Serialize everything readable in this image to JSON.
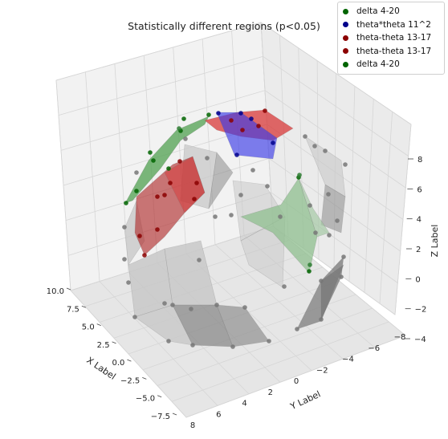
{
  "chart_data": {
    "type": "scatter-3d",
    "title": "Statistically different regions (p<0.05)",
    "xlabel": "X Label",
    "ylabel": "Y Label",
    "zlabel": "Z Label",
    "x_ticks": [
      "10.0",
      "7.5",
      "5.0",
      "2.5",
      "0.0",
      "−2.5",
      "−5.0",
      "−7.5"
    ],
    "y_ticks": [
      "8",
      "6",
      "4",
      "2",
      "0",
      "−2",
      "−4",
      "−6",
      "−8"
    ],
    "z_ticks": [
      "−4",
      "−2",
      "0",
      "2",
      "4",
      "6",
      "8"
    ],
    "legend_placement": "top-right",
    "grid": true,
    "legend": [
      {
        "label": "delta 4-20",
        "color": "#006400"
      },
      {
        "label": "theta*theta 11^2",
        "color": "#00008b"
      },
      {
        "label": "theta-theta 13-17",
        "color": "#8b0000"
      },
      {
        "label": "theta-theta 13-17",
        "color": "#8b0000"
      },
      {
        "label": "delta 4-20",
        "color": "#006400"
      }
    ],
    "colors": {
      "green_fill": "#5aa55a",
      "blue_fill": "#3a3ae6",
      "red_fill": "#d83838",
      "dark_red_fill": "#b03030",
      "light_green_fill": "#8fbf8f",
      "gray_fill": "#8a8a8a",
      "light_gray_fill": "#c8c8c8"
    }
  }
}
